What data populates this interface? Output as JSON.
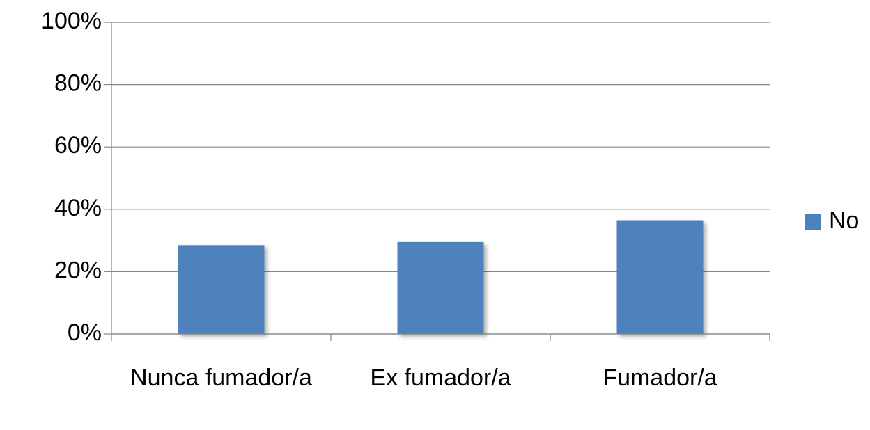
{
  "chart_data": {
    "type": "bar",
    "categories": [
      "Nunca fumador/a",
      "Ex fumador/a",
      "Fumador/a"
    ],
    "series": [
      {
        "name": "No",
        "color": "#4f81bd",
        "values": [
          28.5,
          29.5,
          36.5
        ]
      }
    ],
    "ylim": [
      0,
      100
    ],
    "yticks": [
      {
        "value": 0,
        "label": "0%"
      },
      {
        "value": 20,
        "label": "20%"
      },
      {
        "value": 40,
        "label": "40%"
      },
      {
        "value": 60,
        "label": "60%"
      },
      {
        "value": 80,
        "label": "80%"
      },
      {
        "value": 100,
        "label": "100%"
      }
    ],
    "grid": true,
    "legend": "right"
  }
}
